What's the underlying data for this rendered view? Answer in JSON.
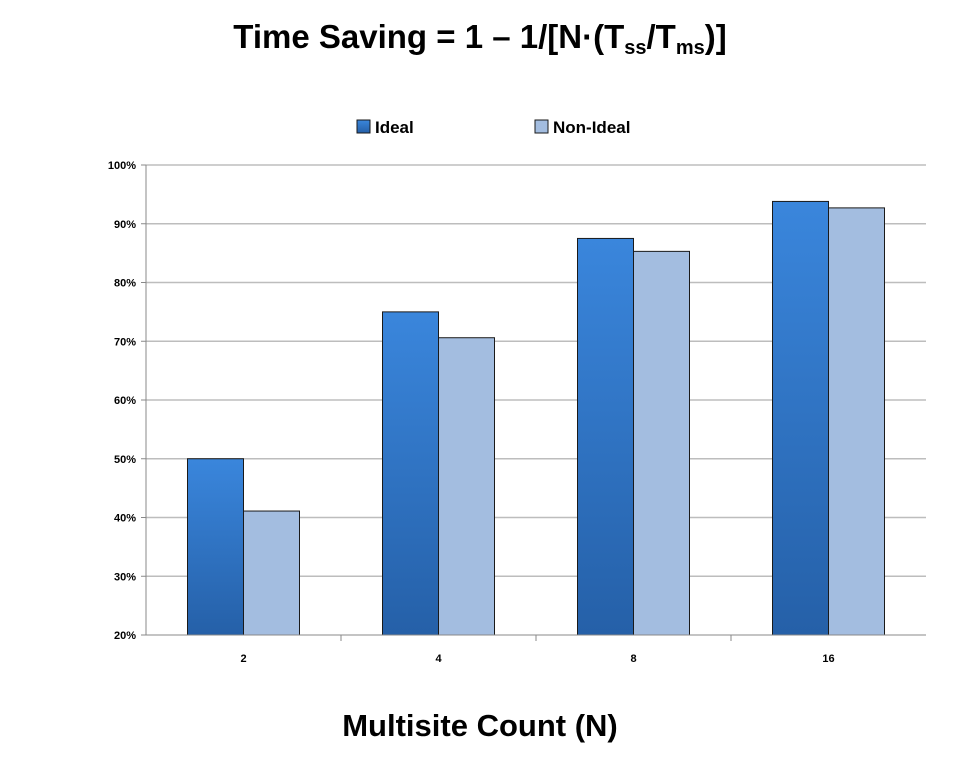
{
  "chart_data": {
    "type": "bar",
    "title_parts": {
      "prefix": "Time Saving = 1 – 1/[N·(T",
      "sub1": "ss",
      "mid": "/T",
      "sub2": "ms",
      "suffix": ")]"
    },
    "xlabel": "Multisite Count (N)",
    "ylabel": "",
    "categories": [
      "2",
      "4",
      "8",
      "16"
    ],
    "series": [
      {
        "name": "Ideal",
        "values": [
          50,
          75,
          87.5,
          93.8
        ],
        "color": "#2f6fc4"
      },
      {
        "name": "Non-Ideal",
        "values": [
          41.1,
          70.6,
          85.3,
          92.7
        ],
        "color": "#a3bde0"
      }
    ],
    "ylim": [
      20,
      100
    ],
    "yticks": [
      "20%",
      "30%",
      "40%",
      "50%",
      "60%",
      "70%",
      "80%",
      "90%",
      "100%"
    ],
    "grid": true,
    "legend": "top-center"
  }
}
